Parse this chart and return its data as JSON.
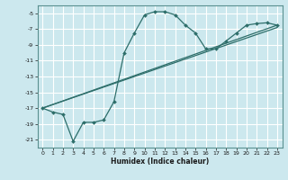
{
  "title": "",
  "xlabel": "Humidex (Indice chaleur)",
  "ylabel": "",
  "bg_color": "#cce8ee",
  "grid_color": "#ffffff",
  "line_color": "#2d6e6a",
  "xlim": [
    -0.5,
    23.5
  ],
  "ylim": [
    -22,
    -4
  ],
  "xticks": [
    0,
    1,
    2,
    3,
    4,
    5,
    6,
    7,
    8,
    9,
    10,
    11,
    12,
    13,
    14,
    15,
    16,
    17,
    18,
    19,
    20,
    21,
    22,
    23
  ],
  "yticks": [
    -21,
    -19,
    -17,
    -15,
    -13,
    -11,
    -9,
    -7,
    -5
  ],
  "line1_x": [
    0,
    1,
    2,
    3,
    4,
    5,
    6,
    7,
    8,
    9,
    10,
    11,
    12,
    13,
    14,
    15,
    16,
    17,
    18,
    19,
    20,
    21,
    22,
    23
  ],
  "line1_y": [
    -17,
    -17.5,
    -17.8,
    -21.2,
    -18.8,
    -18.8,
    -18.5,
    -16.2,
    -10.0,
    -7.5,
    -5.2,
    -4.8,
    -4.8,
    -5.2,
    -6.5,
    -7.5,
    -9.5,
    -9.5,
    -8.5,
    -7.5,
    -6.5,
    -6.3,
    -6.2,
    -6.5
  ],
  "line2_x": [
    0,
    23
  ],
  "line2_y": [
    -17,
    -6.5
  ],
  "line3_x": [
    0,
    23
  ],
  "line3_y": [
    -17,
    -6.8
  ]
}
